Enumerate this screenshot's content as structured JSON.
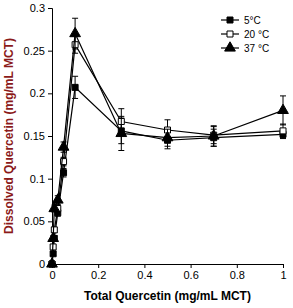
{
  "chart_data": {
    "type": "line",
    "x_label": "Total Quercetin (mg/mL MCT)",
    "y_label": "Dissolved Quercetin (mg/mL MCT)",
    "x": [
      0,
      0.005,
      0.01,
      0.025,
      0.05,
      0.1,
      0.3,
      0.5,
      0.7,
      1
    ],
    "series": [
      {
        "name": "5°C",
        "color": "#000000",
        "marker": "square",
        "values": [
          0,
          0.012,
          0.03,
          0.06,
          0.107,
          0.207,
          0.156,
          0.145,
          0.148,
          0.152
        ],
        "errors": [
          0,
          0.002,
          0.003,
          0.004,
          0.005,
          0.013,
          0.015,
          0.01,
          0.01,
          0.005
        ]
      },
      {
        "name": "20 °C",
        "color": "#000000",
        "marker": "open-square",
        "values": [
          0,
          0.02,
          0.04,
          0.065,
          0.12,
          0.257,
          0.167,
          0.157,
          0.151,
          0.156
        ],
        "errors": [
          0,
          0.002,
          0.003,
          0.004,
          0.005,
          0.01,
          0.015,
          0.012,
          0.01,
          0.008
        ]
      },
      {
        "name": "37 °C",
        "color": "#000000",
        "marker": "triangle",
        "values": [
          0,
          0.03,
          0.065,
          0.075,
          0.137,
          0.27,
          0.153,
          0.148,
          0.15,
          0.18
        ],
        "errors": [
          0,
          0.003,
          0.004,
          0.005,
          0.006,
          0.018,
          0.02,
          0.01,
          0.012,
          0.017
        ]
      }
    ],
    "xlim": [
      0,
      1
    ],
    "xticks": [
      0,
      0.2,
      0.4,
      0.6,
      0.8,
      1
    ],
    "ylim": [
      0,
      0.3
    ],
    "yticks": [
      0,
      0.05,
      0.1,
      0.15,
      0.2,
      0.25,
      0.3
    ],
    "legend": "top-right"
  }
}
